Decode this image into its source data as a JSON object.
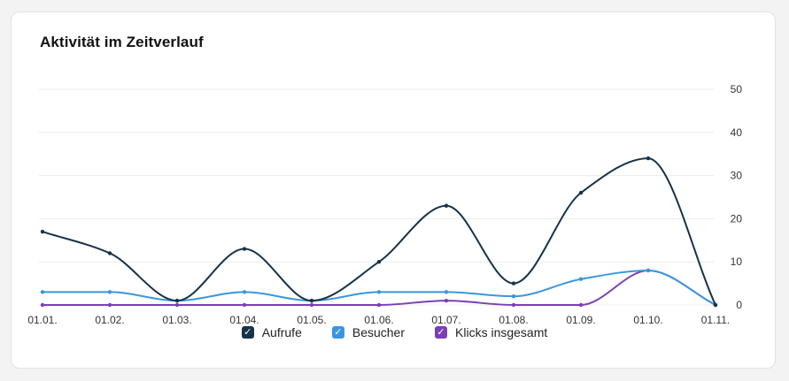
{
  "title": "Aktivität im Zeitverlauf",
  "colors": {
    "aufrufe": "#16334a",
    "besucher": "#3b97dc",
    "klicks": "#7b3fb5",
    "grid": "#ececee"
  },
  "legend": [
    {
      "label": "Aufrufe",
      "checked": true,
      "check_icon": "check-icon"
    },
    {
      "label": "Besucher",
      "checked": true,
      "check_icon": "check-icon"
    },
    {
      "label": "Klicks insgesamt",
      "checked": true,
      "check_icon": "check-icon"
    }
  ],
  "chart_data": {
    "type": "line",
    "x": [
      "01.01.",
      "01.02.",
      "01.03.",
      "01.04.",
      "01.05.",
      "01.06.",
      "01.07.",
      "01.08.",
      "01.09.",
      "01.10.",
      "01.11."
    ],
    "y_ticks": [
      0,
      10,
      20,
      30,
      40,
      50
    ],
    "ylim": [
      0,
      50
    ],
    "y_axis_position": "right",
    "grid": true,
    "legend_position": "bottom",
    "series": [
      {
        "name": "Aufrufe",
        "values": [
          17,
          12,
          1,
          13,
          1,
          10,
          23,
          5,
          26,
          34,
          0
        ]
      },
      {
        "name": "Besucher",
        "values": [
          3,
          3,
          1,
          3,
          1,
          3,
          3,
          2,
          6,
          8,
          0
        ]
      },
      {
        "name": "Klicks insgesamt",
        "values": [
          0,
          0,
          0,
          0,
          0,
          0,
          1,
          0,
          0,
          8,
          0
        ]
      }
    ]
  }
}
